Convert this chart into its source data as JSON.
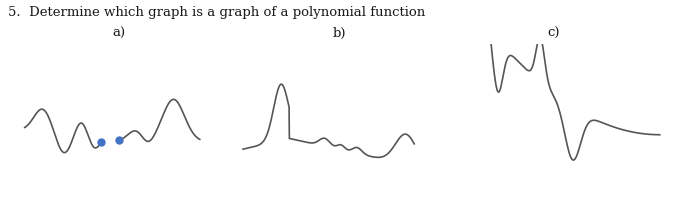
{
  "title": "5.  Determine which graph is a graph of a polynomial function",
  "labels": [
    "a)",
    "b)",
    "c)"
  ],
  "bg_color": "#ffffff",
  "text_color": "#1a1a1a",
  "curve_color": "#555555",
  "dot_color": "#4472c4",
  "title_fontsize": 9.5,
  "label_fontsize": 9.5
}
